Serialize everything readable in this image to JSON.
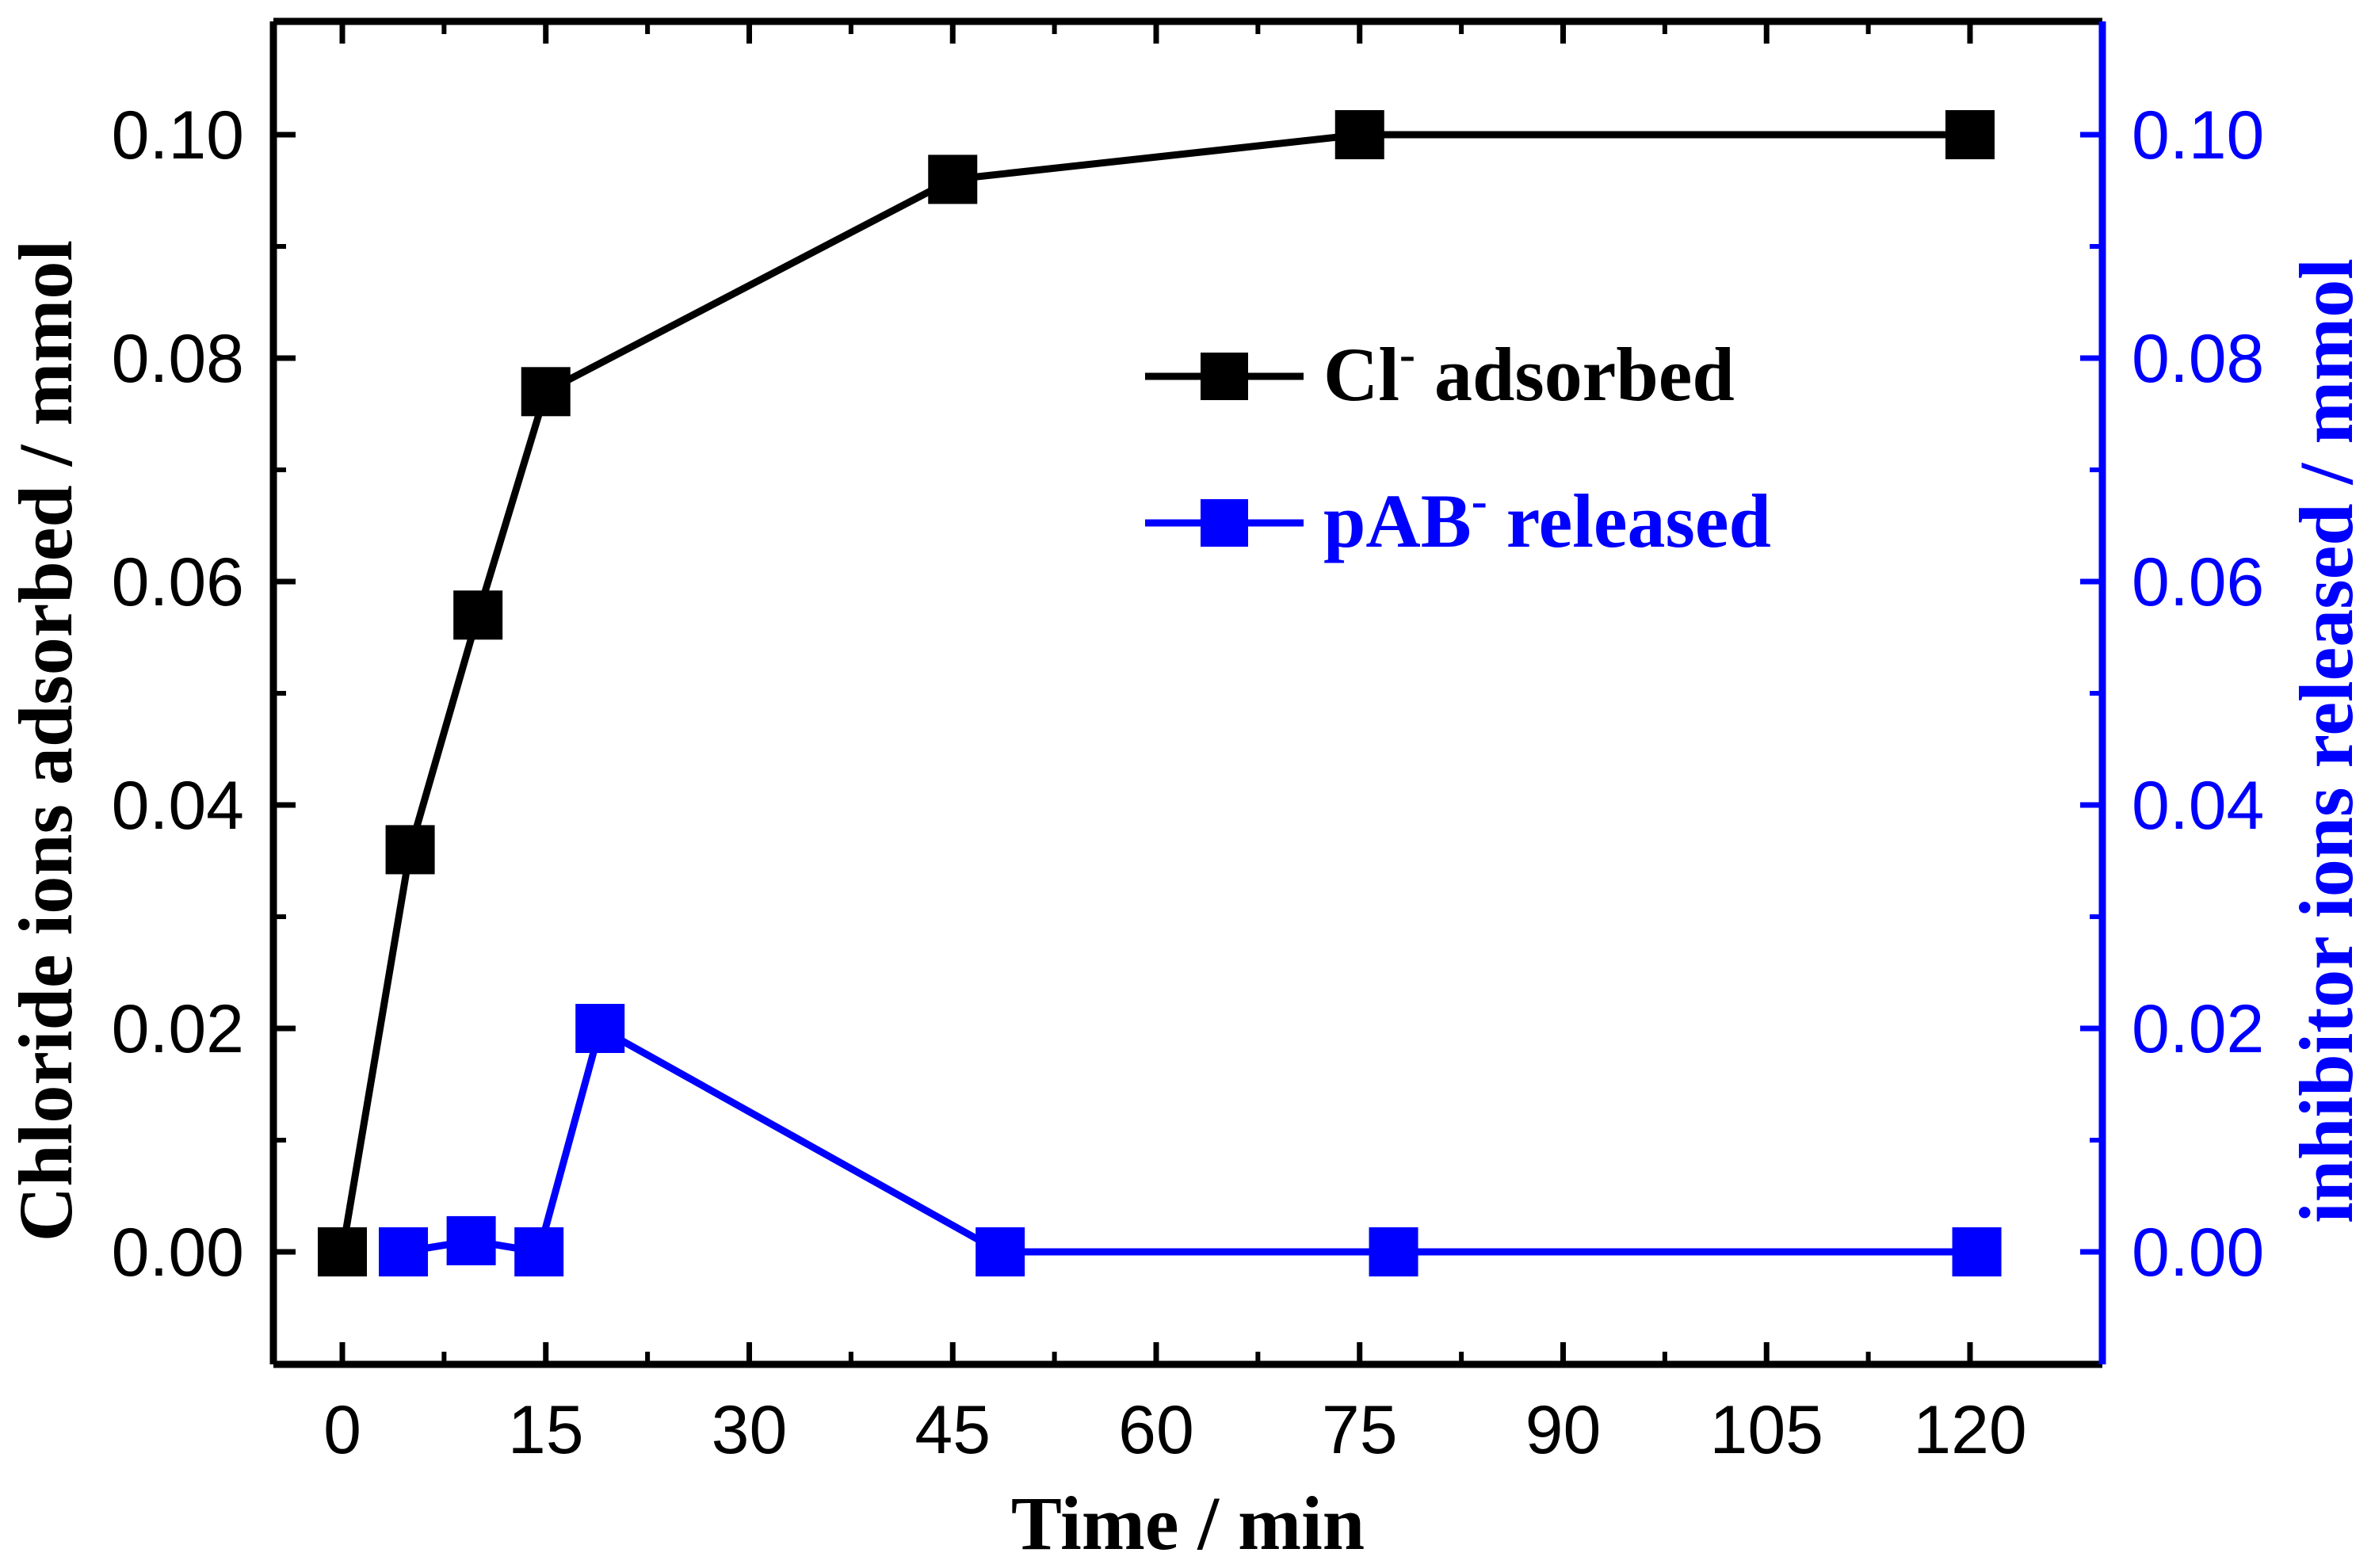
{
  "chart_data": {
    "type": "line",
    "x_axis": {
      "label": "Time / min",
      "ticks": [
        0,
        15,
        30,
        45,
        60,
        75,
        90,
        105,
        120
      ],
      "tick_labels": [
        "0",
        "15",
        "30",
        "45",
        "60",
        "75",
        "90",
        "105",
        "120"
      ],
      "range": [
        -5,
        128
      ]
    },
    "y_axis_left": {
      "label": "Chloride ions adsorbed / mmol",
      "ticks": [
        0.0,
        0.02,
        0.04,
        0.06,
        0.08,
        0.1
      ],
      "tick_labels": [
        "0.00",
        "0.02",
        "0.04",
        "0.06",
        "0.08",
        "0.10"
      ],
      "range": [
        -0.01,
        0.11
      ],
      "color": "#000000"
    },
    "y_axis_right": {
      "label": "inhibitor ions released / mmol",
      "ticks": [
        0.0,
        0.02,
        0.04,
        0.06,
        0.08,
        0.1
      ],
      "tick_labels": [
        "0.00",
        "0.02",
        "0.04",
        "0.06",
        "0.08",
        "0.10"
      ],
      "range": [
        -0.01,
        0.11
      ],
      "color": "#0000ff"
    },
    "series": [
      {
        "name": "Cl- adsorbed",
        "legend_main": "Cl",
        "legend_sup": "-",
        "legend_rest": " adsorbed",
        "axis": "left",
        "color": "#000000",
        "marker": "square",
        "x": [
          0,
          5,
          10,
          15,
          45,
          75,
          120
        ],
        "y": [
          0.0,
          0.036,
          0.057,
          0.077,
          0.096,
          0.1,
          0.1
        ]
      },
      {
        "name": "pAB- released",
        "legend_main": "pAB",
        "legend_sup": "-",
        "legend_rest": " released",
        "axis": "right",
        "color": "#0000ff",
        "marker": "square",
        "x": [
          4.5,
          9.5,
          14.5,
          19,
          48.5,
          77.5,
          120.5
        ],
        "y": [
          0.0,
          0.001,
          0.0,
          0.02,
          0.0,
          0.0,
          0.0
        ]
      }
    ]
  }
}
